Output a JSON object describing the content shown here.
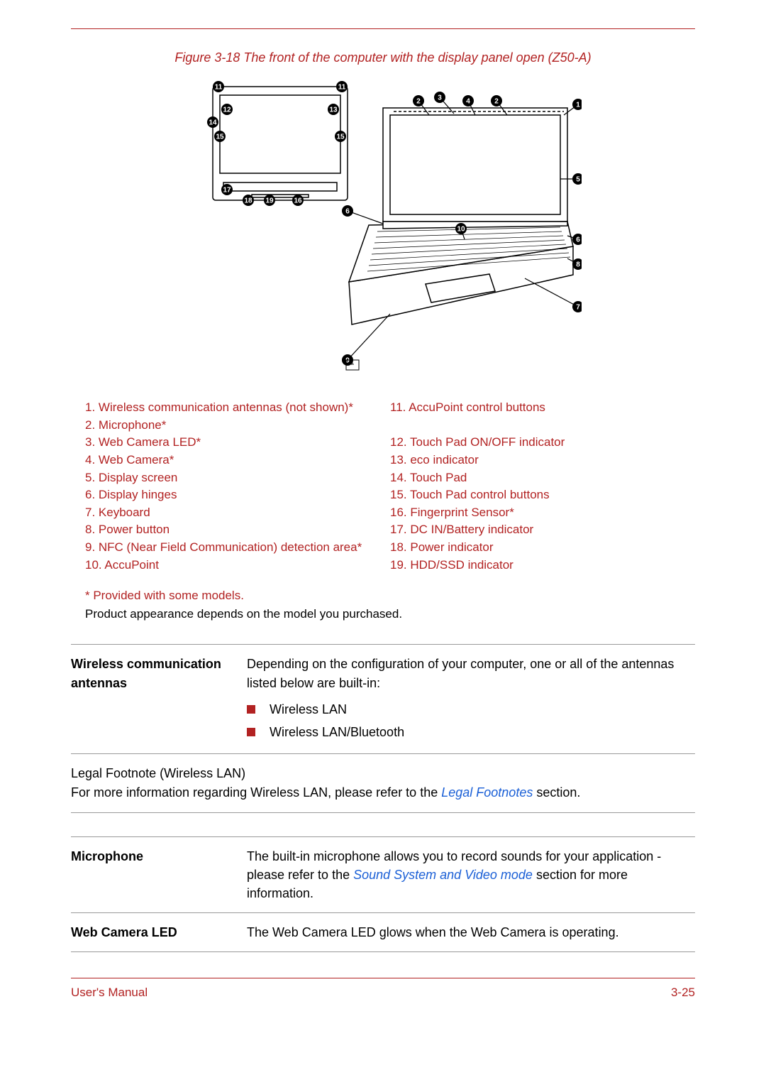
{
  "colors": {
    "accent": "#b22222",
    "link": "#1a5fd6",
    "text": "#000000",
    "rule_gray": "#999999",
    "diagram_stroke": "#000000",
    "diagram_fill": "#ffffff",
    "callout_fill": "#000000",
    "callout_text": "#ffffff"
  },
  "figure": {
    "caption": "Figure 3-18 The front of the computer with the display panel open (Z50-A)",
    "type": "technical-line-diagram",
    "callouts": [
      1,
      2,
      3,
      4,
      5,
      6,
      7,
      8,
      9,
      10,
      11,
      12,
      13,
      14,
      15,
      16,
      17,
      18,
      19
    ]
  },
  "legend": {
    "left": [
      "1. Wireless communication antennas (not shown)*",
      "2. Microphone*",
      "3. Web Camera LED*",
      "4. Web Camera*",
      "5. Display screen",
      "6. Display hinges",
      "7. Keyboard",
      "8. Power button",
      "9. NFC (Near Field Communication) detection area*",
      "10. AccuPoint"
    ],
    "right": [
      "11. AccuPoint control buttons",
      "",
      "12. Touch Pad ON/OFF indicator",
      "13. eco indicator",
      "14. Touch Pad",
      "15. Touch Pad control buttons",
      "16. Fingerprint Sensor*",
      "17. DC IN/Battery indicator",
      "18. Power indicator",
      "19. HDD/SSD indicator"
    ],
    "note1": "* Provided with some models.",
    "note2": "Product appearance depends on the model you purchased."
  },
  "descriptions": {
    "wireless": {
      "term": "Wireless communication antennas",
      "body": "Depending on the configuration of your computer, one or all of the antennas listed below are built-in:",
      "bullets": [
        "Wireless LAN",
        "Wireless LAN/Bluetooth"
      ]
    },
    "footnote_block": {
      "line1": "Legal Footnote (Wireless LAN)",
      "line2_pre": "For more information regarding Wireless LAN, please refer to the ",
      "line2_link": "Legal Footnotes",
      "line2_post": " section."
    },
    "microphone": {
      "term": "Microphone",
      "body_pre": "The built-in microphone allows you to record sounds for your application - please refer to the ",
      "body_link": "Sound System and Video mode",
      "body_post": " section for more information."
    },
    "webcam_led": {
      "term": "Web Camera LED",
      "body": "The Web Camera LED glows when the Web Camera is operating."
    }
  },
  "footer": {
    "left": "User's Manual",
    "right": "3-25"
  }
}
